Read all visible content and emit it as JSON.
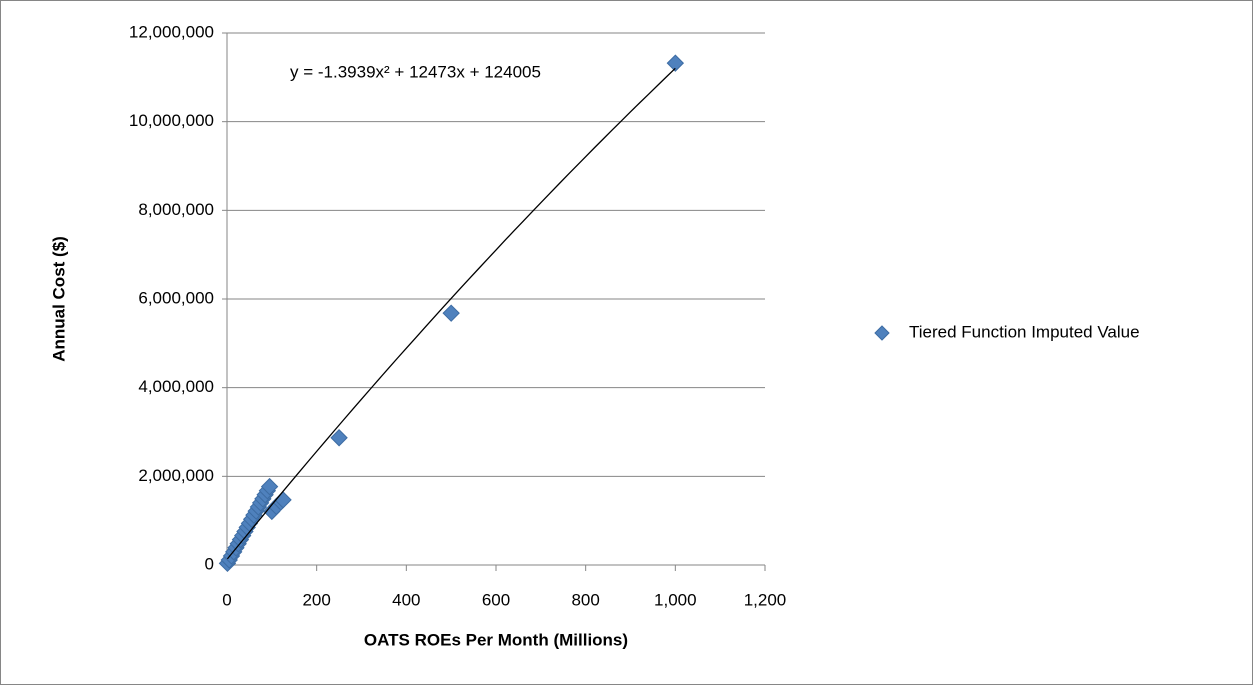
{
  "chart_data": {
    "type": "scatter",
    "xlabel": "OATS ROEs Per Month (Millions)",
    "ylabel": "Annual Cost ($)",
    "xlim": [
      0,
      1200
    ],
    "xticks": [
      0,
      200,
      400,
      600,
      800,
      {
        "value": 1000,
        "label": "1,000"
      },
      {
        "value": 1200,
        "label": "1,200"
      }
    ],
    "ylim": [
      0,
      12000000
    ],
    "yticks": [
      0,
      {
        "value": 2000000,
        "label": "2,000,000"
      },
      {
        "value": 4000000,
        "label": "4,000,000"
      },
      {
        "value": 6000000,
        "label": "6,000,000"
      },
      {
        "value": 8000000,
        "label": "8,000,000"
      },
      {
        "value": 10000000,
        "label": "10,000,000"
      },
      {
        "value": 12000000,
        "label": "12,000,000"
      }
    ],
    "grid": true,
    "legend": "right",
    "series": [
      {
        "name": "Tiered Function Imputed Value",
        "color": "#4f81bd",
        "x": [
          1,
          5,
          10,
          15,
          20,
          25,
          30,
          35,
          40,
          45,
          50,
          55,
          60,
          65,
          70,
          75,
          80,
          85,
          90,
          95,
          100,
          110,
          120,
          125,
          250,
          500,
          1000
        ],
        "values": [
          38000,
          112000,
          204000,
          296000,
          388000,
          480000,
          572000,
          664000,
          756000,
          848000,
          940000,
          1032000,
          1124000,
          1216000,
          1308000,
          1400000,
          1492000,
          1584000,
          1676000,
          1768000,
          1210000,
          1320000,
          1420000,
          1470000,
          2870000,
          5680000,
          11320000
        ]
      }
    ],
    "trendline": {
      "coefficients": [
        -1.3939,
        12473,
        124005
      ],
      "label": "y = -1.3939x² + 12473x + 124005"
    }
  }
}
